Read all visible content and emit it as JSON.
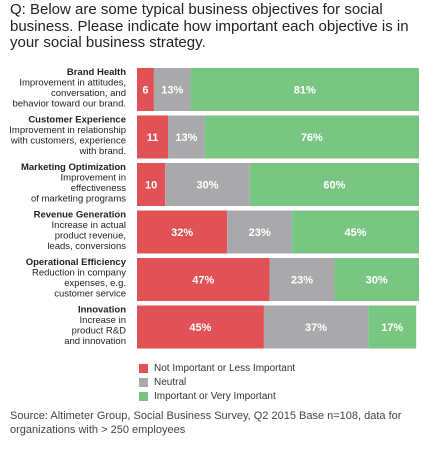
{
  "title": "Q: Below are some typical business objectives for social business. Please indicate how important each objective is in your social business strategy.",
  "source": "Source: Altimeter Group, Social Business Survey, Q2 2015 Base n=108, data for organizations with > 250 employees",
  "colors": {
    "not_important": "#e05255",
    "neutral": "#a9a9ab",
    "important": "#79c683"
  },
  "chart_data": {
    "type": "bar",
    "orientation": "horizontal",
    "stacked": true,
    "percent_labels": true,
    "categories": [
      {
        "name": "Brand Health",
        "description": [
          "Improvement in attitudes,",
          "conversation, and",
          "behavior toward our brand."
        ]
      },
      {
        "name": "Customer Experience",
        "description": [
          "Improvement in relationship",
          "with customers, experience",
          "with brand."
        ]
      },
      {
        "name": "Marketing Optimization",
        "description": [
          "Improvement in",
          "effectiveness",
          "of marketing programs"
        ]
      },
      {
        "name": "Revenue Generation",
        "description": [
          "Increase in actual",
          "product revenue,",
          "leads, conversions"
        ]
      },
      {
        "name": "Operational Efficiency",
        "description": [
          "Reduction in company",
          "expenses, e.g.",
          "customer service"
        ]
      },
      {
        "name": "Innovation",
        "description": [
          "Increase in",
          "product R&D",
          "and innovation"
        ]
      }
    ],
    "series": [
      {
        "name": "Not Important or Less Important",
        "values": [
          6,
          11,
          10,
          32,
          47,
          45
        ],
        "labels": [
          "6",
          "11",
          "10",
          "32%",
          "47%",
          "45%"
        ]
      },
      {
        "name": "Neutral",
        "values": [
          13,
          13,
          30,
          23,
          23,
          37
        ],
        "labels": [
          "13%",
          "13%",
          "30%",
          "23%",
          "23%",
          "37%"
        ]
      },
      {
        "name": "Important or Very Important",
        "values": [
          81,
          76,
          60,
          45,
          30,
          17
        ],
        "labels": [
          "81%",
          "76%",
          "60%",
          "45%",
          "30%",
          "17%"
        ]
      }
    ],
    "xlim": [
      0,
      100
    ],
    "grid": false,
    "legend_position": "bottom"
  }
}
